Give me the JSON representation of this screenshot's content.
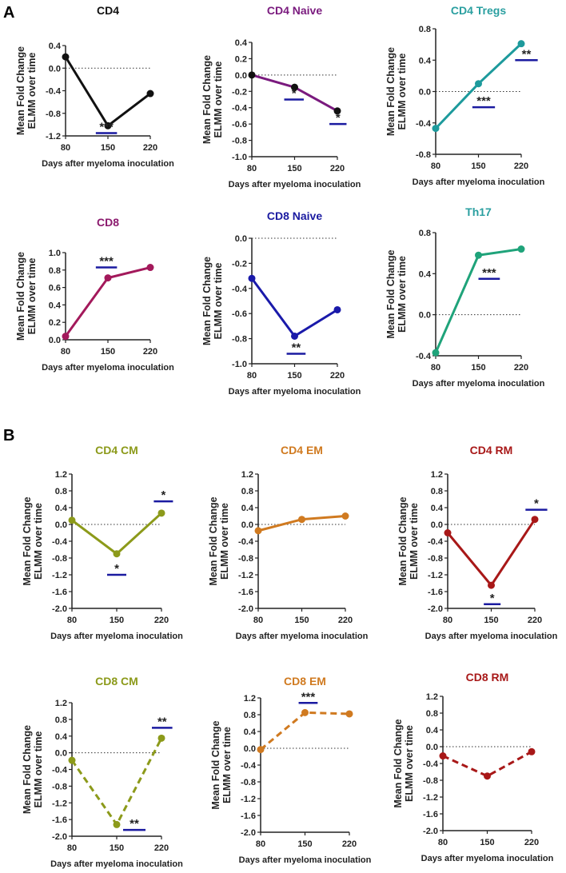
{
  "panel_labels": [
    "A",
    "B"
  ],
  "chart_data": [
    {
      "type": "line",
      "title": "CD4",
      "title_color": "#111111",
      "line_color": "#111111",
      "marker_color": "#111111",
      "dashed": false,
      "xlabel": "Days after myeloma inoculation",
      "ylabel": [
        "Mean Fold Change",
        "ELMM over time"
      ],
      "x": [
        80,
        150,
        220
      ],
      "y": [
        0.2,
        -1.02,
        -0.45
      ],
      "ylim": [
        -1.2,
        0.4
      ],
      "yticks": [
        -1.2,
        -0.8,
        -0.4,
        0.0,
        0.4
      ],
      "xticks": [
        80,
        150,
        220
      ],
      "annotations": [
        {
          "label": "***",
          "x_from": 130,
          "x_to": 165,
          "y": -1.15
        }
      ]
    },
    {
      "type": "line",
      "title": "CD4 Naive",
      "title_color": "#7a1a7e",
      "line_color": "#7a1a7e",
      "marker_color": "#111111",
      "dashed": false,
      "xlabel": "Days after myeloma inoculation",
      "ylabel": [
        "Mean Fold Change",
        "ELMM over time"
      ],
      "x": [
        80,
        150,
        220
      ],
      "y": [
        0.0,
        -0.15,
        -0.44
      ],
      "ylim": [
        -1.0,
        0.4
      ],
      "yticks": [
        -1.0,
        -0.8,
        -0.6,
        -0.4,
        -0.2,
        0.0,
        0.2,
        0.4
      ],
      "xticks": [
        80,
        150,
        220
      ],
      "annotations": [
        {
          "label": "*",
          "x_from": 133,
          "x_to": 165,
          "y": -0.3
        },
        {
          "label": "*",
          "x_from": 207,
          "x_to": 235,
          "y": -0.6
        }
      ]
    },
    {
      "type": "line",
      "title": "CD4 Tregs",
      "title_color": "#2a9fa0",
      "line_color": "#1d9a9c",
      "marker_color": "#1d9a9c",
      "dashed": false,
      "xlabel": "Days after myeloma inoculation",
      "ylabel": [
        "Mean Fold Change",
        "ELMM over time"
      ],
      "x": [
        80,
        150,
        220
      ],
      "y": [
        -0.47,
        0.1,
        0.61
      ],
      "ylim": [
        -0.8,
        0.8
      ],
      "yticks": [
        -0.8,
        -0.4,
        0.0,
        0.4,
        0.8
      ],
      "xticks": [
        80,
        150,
        220
      ],
      "annotations": [
        {
          "label": "***",
          "x_from": 140,
          "x_to": 177,
          "y": -0.2
        },
        {
          "label": "**",
          "x_from": 210,
          "x_to": 247,
          "y": 0.4
        }
      ]
    },
    {
      "type": "line",
      "title": "CD8",
      "title_color": "#8b1a6e",
      "line_color": "#a3195b",
      "marker_color": "#a3195b",
      "dashed": false,
      "xlabel": "Days after myeloma inoculation",
      "ylabel": [
        "Mean Fold Change",
        "ELMM over time"
      ],
      "x": [
        80,
        150,
        220
      ],
      "y": [
        0.04,
        0.71,
        0.83
      ],
      "ylim": [
        0.0,
        1.0
      ],
      "yticks": [
        0.0,
        0.2,
        0.4,
        0.6,
        0.8,
        1.0
      ],
      "xticks": [
        80,
        150,
        220
      ],
      "annotations": [
        {
          "label": "***",
          "x_from": 130,
          "x_to": 165,
          "y": 0.83
        }
      ]
    },
    {
      "type": "line",
      "title": "CD8 Naive",
      "title_color": "#1a1aa0",
      "line_color": "#1a1aaa",
      "marker_color": "#1a1aaa",
      "dashed": false,
      "xlabel": "Days after myeloma inoculation",
      "ylabel": [
        "Mean Fold Change",
        "ELMM over time"
      ],
      "x": [
        80,
        150,
        220
      ],
      "y": [
        -0.32,
        -0.78,
        -0.57
      ],
      "ylim": [
        -1.0,
        0.0
      ],
      "yticks": [
        -1.0,
        -0.8,
        -0.6,
        -0.4,
        -0.2,
        0.0
      ],
      "xticks": [
        80,
        150,
        220
      ],
      "annotations": [
        {
          "label": "**",
          "x_from": 137,
          "x_to": 168,
          "y": -0.92
        }
      ]
    },
    {
      "type": "line",
      "title": "Th17",
      "title_color": "#2a9fa0",
      "line_color": "#1fa37a",
      "marker_color": "#1fa37a",
      "dashed": false,
      "xlabel": "Days after myeloma inoculation",
      "ylabel": [
        "Mean Fold Change",
        "ELMM over time"
      ],
      "x": [
        80,
        150,
        220
      ],
      "y": [
        -0.37,
        0.58,
        0.64
      ],
      "ylim": [
        -0.4,
        0.8
      ],
      "yticks": [
        -0.4,
        0.0,
        0.4,
        0.8
      ],
      "xticks": [
        80,
        150,
        220
      ],
      "annotations": [
        {
          "label": "***",
          "x_from": 150,
          "x_to": 185,
          "y": 0.35
        }
      ]
    },
    {
      "type": "line",
      "title": "CD4 CM",
      "title_color": "#8c9a1a",
      "line_color": "#8c9a1a",
      "marker_color": "#8c9a1a",
      "dashed": false,
      "xlabel": "Days after myeloma inoculation",
      "ylabel": [
        "Mean Fold Change",
        "ELMM over time"
      ],
      "x": [
        80,
        150,
        220
      ],
      "y": [
        0.1,
        -0.7,
        0.27
      ],
      "ylim": [
        -2.0,
        1.2
      ],
      "yticks": [
        -2.0,
        -1.6,
        -1.2,
        -0.8,
        -0.4,
        0.0,
        0.4,
        0.8,
        1.2
      ],
      "xticks": [
        80,
        150,
        220
      ],
      "annotations": [
        {
          "label": "*",
          "x_from": 135,
          "x_to": 165,
          "y": -1.2
        },
        {
          "label": "*",
          "x_from": 208,
          "x_to": 238,
          "y": 0.55
        }
      ]
    },
    {
      "type": "line",
      "title": "CD4 EM",
      "title_color": "#d07a20",
      "line_color": "#d07a20",
      "marker_color": "#d07a20",
      "dashed": false,
      "xlabel": "Days after myeloma inoculation",
      "ylabel": [
        "Mean Fold Change",
        "ELMM over time"
      ],
      "x": [
        80,
        150,
        220
      ],
      "y": [
        -0.15,
        0.12,
        0.2
      ],
      "ylim": [
        -2.0,
        1.2
      ],
      "yticks": [
        -2.0,
        -1.6,
        -1.2,
        -0.8,
        -0.4,
        0.0,
        0.4,
        0.8,
        1.2
      ],
      "xticks": [
        80,
        150,
        220
      ],
      "annotations": []
    },
    {
      "type": "line",
      "title": "CD4 RM",
      "title_color": "#a81818",
      "line_color": "#a81818",
      "marker_color": "#a81818",
      "dashed": false,
      "xlabel": "Days after myeloma inoculation",
      "ylabel": [
        "Mean Fold Change",
        "ELMM over time"
      ],
      "x": [
        80,
        150,
        220
      ],
      "y": [
        -0.2,
        -1.45,
        0.12
      ],
      "ylim": [
        -2.0,
        1.2
      ],
      "yticks": [
        -2.0,
        -1.6,
        -1.2,
        -0.8,
        -0.4,
        0.0,
        0.4,
        0.8,
        1.2
      ],
      "xticks": [
        80,
        150,
        220
      ],
      "annotations": [
        {
          "label": "*",
          "x_from": 138,
          "x_to": 165,
          "y": -1.9
        },
        {
          "label": "*",
          "x_from": 205,
          "x_to": 240,
          "y": 0.35
        }
      ]
    },
    {
      "type": "line",
      "title": "CD8 CM",
      "title_color": "#8c9a1a",
      "line_color": "#8c9a1a",
      "marker_color": "#8c9a1a",
      "dashed": true,
      "xlabel": "Days after myeloma inoculation",
      "ylabel": [
        "Mean Fold Change",
        "ELMM over time"
      ],
      "x": [
        80,
        150,
        220
      ],
      "y": [
        -0.18,
        -1.72,
        0.35
      ],
      "ylim": [
        -2.0,
        1.2
      ],
      "yticks": [
        -2.0,
        -1.6,
        -1.2,
        -0.8,
        -0.4,
        0.0,
        0.4,
        0.8,
        1.2
      ],
      "xticks": [
        80,
        150,
        220
      ],
      "annotations": [
        {
          "label": "**",
          "x_from": 160,
          "x_to": 195,
          "y": -1.85
        },
        {
          "label": "**",
          "x_from": 205,
          "x_to": 237,
          "y": 0.6
        }
      ]
    },
    {
      "type": "line",
      "title": "CD8 EM",
      "title_color": "#d07a20",
      "line_color": "#d07a20",
      "marker_color": "#d07a20",
      "dashed": true,
      "xlabel": "Days after myeloma inoculation",
      "ylabel": [
        "Mean Fold Change",
        "ELMM over time"
      ],
      "x": [
        80,
        150,
        220
      ],
      "y": [
        -0.03,
        0.85,
        0.82
      ],
      "ylim": [
        -2.0,
        1.2
      ],
      "yticks": [
        -2.0,
        -1.6,
        -1.2,
        -0.8,
        -0.4,
        0.0,
        0.4,
        0.8,
        1.2
      ],
      "xticks": [
        80,
        150,
        220
      ],
      "annotations": [
        {
          "label": "***",
          "x_from": 140,
          "x_to": 170,
          "y": 1.08
        }
      ]
    },
    {
      "type": "line",
      "title": "CD8 RM",
      "title_color": "#a81818",
      "line_color": "#a81818",
      "marker_color": "#a81818",
      "dashed": true,
      "xlabel": "Days after myeloma inoculation",
      "ylabel": [
        "Mean Fold Change",
        "ELMM over time"
      ],
      "x": [
        80,
        150,
        220
      ],
      "y": [
        -0.22,
        -0.7,
        -0.12
      ],
      "ylim": [
        -2.0,
        1.2
      ],
      "yticks": [
        -2.0,
        -1.6,
        -1.2,
        -0.8,
        -0.4,
        0.0,
        0.4,
        0.8,
        1.2
      ],
      "xticks": [
        80,
        150,
        220
      ],
      "annotations": []
    }
  ],
  "colors": {
    "significance_bar": "#1a1aa0"
  }
}
